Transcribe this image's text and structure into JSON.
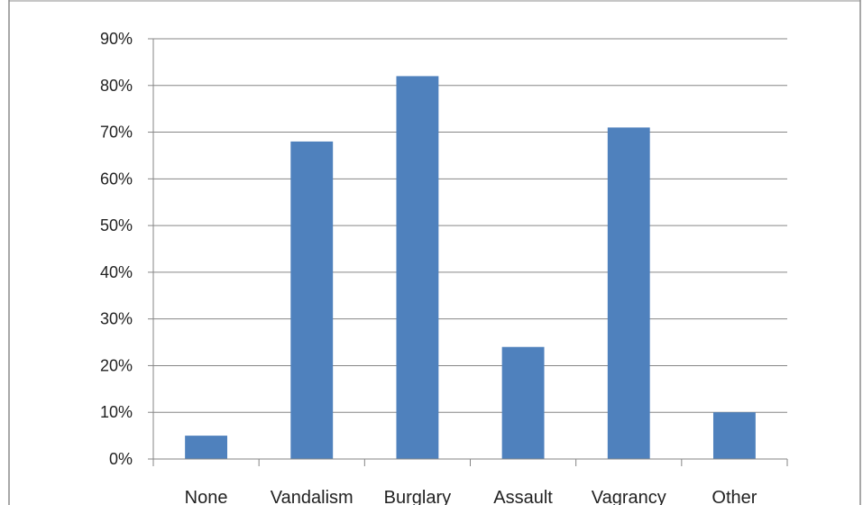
{
  "chart_data": {
    "type": "bar",
    "title": "",
    "xlabel": "",
    "ylabel": "",
    "categories": [
      "None",
      "Vandalism",
      "Burglary",
      "Assault",
      "Vagrancy",
      "Other"
    ],
    "values": [
      5,
      68,
      82,
      24,
      71,
      10
    ],
    "value_format": "percent",
    "ylim": [
      0,
      90
    ],
    "yticks": [
      0,
      10,
      20,
      30,
      40,
      50,
      60,
      70,
      80,
      90
    ],
    "ytick_labels": [
      "0%",
      "10%",
      "20%",
      "30%",
      "40%",
      "50%",
      "60%",
      "70%",
      "80%",
      "90%"
    ],
    "grid": true,
    "legend": "none",
    "bar_color": "#4f81bd",
    "gridline_color": "#868686",
    "border_color": "#8c8c8c"
  }
}
